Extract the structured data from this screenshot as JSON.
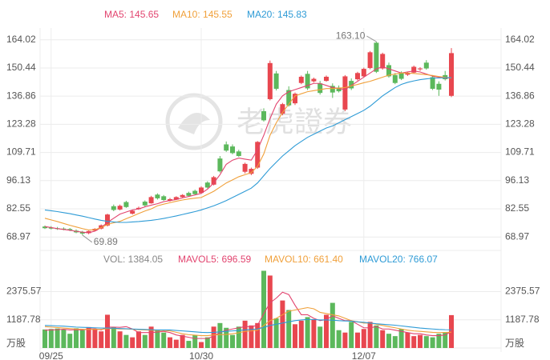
{
  "chart_data": [
    {
      "type": "candlestick",
      "up_color": "#e8474f",
      "down_color": "#5cb85c",
      "open": [
        74,
        73.5,
        73.2,
        73.0,
        72.8,
        72.0,
        71.4,
        70.8,
        72.0,
        73.0,
        74.5,
        83.8,
        82.2,
        85.8,
        80.2,
        82.4,
        86.0,
        85.2,
        89.4,
        88.6,
        86.4,
        87.0,
        88.2,
        90.2,
        91.2,
        90.2,
        95.2,
        94.2,
        106.8,
        113.6,
        112.6,
        110.2,
        100.4,
        99.4,
        102.4,
        129.6,
        135.4,
        147.8,
        128.4,
        139.8,
        133.4,
        143.2,
        147.6,
        144.0,
        143.0,
        144.2,
        141.8,
        141.0,
        130.4,
        144.2,
        145.0,
        146.4,
        150.4,
        162.6,
        150.2,
        151.8,
        147.0,
        148.0,
        147.2,
        148.2,
        149.8,
        153.0,
        146.0,
        142.8,
        147.0,
        137.0
      ],
      "high": [
        74.5,
        74.2,
        73.8,
        73.6,
        73.3,
        72.6,
        71.9,
        72.0,
        73.2,
        75.0,
        80.2,
        84.6,
        84.6,
        86.4,
        82.2,
        83.6,
        86.6,
        88.8,
        90.0,
        89.2,
        87.8,
        88.6,
        89.6,
        90.8,
        91.8,
        93.4,
        95.8,
        98.4,
        108.0,
        115.0,
        113.6,
        111.0,
        104.8,
        102.4,
        115.2,
        131.0,
        154.0,
        149.0,
        133.6,
        141.6,
        138.6,
        146.8,
        149.0,
        145.8,
        144.2,
        146.8,
        143.0,
        142.0,
        147.0,
        145.4,
        148.6,
        150.6,
        158.6,
        163.1,
        157.8,
        153.0,
        148.0,
        148.8,
        148.6,
        151.6,
        150.8,
        154.2,
        147.0,
        144.0,
        149.0,
        160.0
      ],
      "low": [
        72.8,
        72.6,
        72.4,
        72.2,
        71.8,
        70.8,
        69.89,
        70.3,
        71.6,
        72.6,
        74.0,
        81.4,
        81.8,
        83.0,
        79.8,
        82.0,
        83.6,
        85.0,
        87.0,
        86.4,
        86.0,
        86.8,
        88.0,
        88.4,
        89.2,
        89.8,
        92.4,
        93.8,
        100.0,
        110.0,
        108.8,
        107.6,
        99.6,
        98.8,
        101.8,
        124.6,
        134.8,
        139.6,
        127.6,
        131.8,
        132.6,
        142.6,
        139.8,
        143.4,
        137.6,
        143.8,
        136.0,
        138.6,
        129.6,
        139.8,
        144.4,
        145.8,
        149.8,
        148.0,
        149.6,
        145.8,
        142.6,
        144.6,
        146.6,
        147.8,
        149.0,
        149.6,
        139.8,
        137.0,
        144.4,
        136.4
      ],
      "close": [
        73.2,
        73.0,
        72.8,
        72.5,
        72.2,
        71.2,
        70.6,
        71.8,
        72.9,
        74.6,
        79.8,
        82.0,
        84.0,
        83.4,
        81.6,
        83.0,
        84.2,
        88.2,
        87.6,
        86.8,
        87.2,
        88.2,
        89.2,
        88.8,
        89.6,
        92.8,
        92.8,
        97.8,
        100.6,
        110.6,
        109.4,
        108.0,
        104.2,
        101.8,
        114.8,
        125.2,
        152.8,
        140.4,
        133.0,
        132.4,
        138.0,
        146.2,
        140.6,
        145.2,
        138.4,
        146.2,
        138.6,
        139.2,
        146.4,
        140.6,
        148.0,
        150.0,
        158.0,
        148.6,
        157.2,
        146.4,
        143.2,
        145.2,
        148.0,
        151.0,
        150.2,
        150.2,
        140.4,
        140.0,
        145.0,
        157.6
      ],
      "series": [
        {
          "name": "MA5",
          "label": "MA5: 145.65",
          "color": "#e2446f",
          "values": [
            74,
            73.5,
            73,
            72.6,
            72.2,
            71.7,
            71.3,
            71,
            71.8,
            73.5,
            76,
            78,
            80,
            81,
            82,
            82.5,
            83.5,
            84.3,
            85,
            86,
            86.5,
            87,
            87.8,
            88.5,
            89.2,
            90,
            92,
            95,
            99,
            104,
            106,
            107,
            106.5,
            106,
            111,
            118,
            126,
            133,
            137,
            139,
            140,
            141,
            142,
            143,
            143,
            142,
            141,
            140.5,
            140,
            142,
            144,
            146,
            148,
            150,
            151,
            150,
            149,
            148,
            148.5,
            149,
            148.5,
            147.5,
            146.5,
            146,
            145.5,
            145.65
          ]
        },
        {
          "name": "MA10",
          "label": "MA10: 145.55",
          "color": "#f0a03a",
          "values": [
            78,
            77.2,
            76.4,
            75.5,
            74.6,
            73.8,
            73,
            72.3,
            72.5,
            73.5,
            75,
            75.8,
            76.5,
            77.8,
            79,
            80.3,
            81.5,
            82.5,
            84,
            84.8,
            85.5,
            86.2,
            86.8,
            87.3,
            87.7,
            88,
            89.5,
            91,
            93,
            95,
            96.5,
            98,
            99,
            100,
            103,
            109,
            118,
            124,
            129,
            133,
            137,
            138,
            139,
            139.5,
            140,
            140.5,
            140.5,
            140.7,
            141,
            141.8,
            142.5,
            143.3,
            144,
            145,
            146,
            147,
            147.5,
            148,
            148,
            147.8,
            147.5,
            147.2,
            146.8,
            146.3,
            145.9,
            145.55
          ]
        },
        {
          "name": "MA20",
          "label": "MA20: 145.83",
          "color": "#2e9bd6",
          "values": [
            82,
            81.6,
            81.2,
            80.7,
            80.2,
            79.6,
            79,
            78.3,
            77.6,
            77,
            76.5,
            76.2,
            76,
            76,
            76.2,
            76.4,
            76.7,
            77,
            77.4,
            77.9,
            78.5,
            79.1,
            79.8,
            80.5,
            81.2,
            82,
            83,
            84,
            85.2,
            86.5,
            88,
            89.5,
            91,
            92.5,
            95,
            98.5,
            102,
            105,
            108,
            110.5,
            113,
            115,
            117,
            118.5,
            120,
            121.5,
            122.5,
            124,
            125.5,
            127,
            128.5,
            130,
            132,
            134.5,
            137,
            139,
            141,
            142.5,
            143.5,
            144.2,
            144.8,
            145.2,
            145.5,
            145.6,
            145.7,
            145.83
          ]
        }
      ],
      "ylim": [
        62.5,
        169.7
      ],
      "yticks": [
        68.97,
        82.55,
        96.13,
        109.71,
        123.28,
        136.86,
        150.44,
        164.02
      ],
      "max_label": "163.10",
      "min_label": "69.89",
      "watermark": "老虎證券",
      "grid": true
    },
    {
      "type": "bar",
      "label": "VOL: 1384.05",
      "categories": [
        null,
        "09/25",
        null,
        null,
        null,
        null,
        null,
        null,
        null,
        null,
        null,
        null,
        null,
        null,
        null,
        null,
        null,
        null,
        null,
        null,
        null,
        null,
        null,
        null,
        null,
        "10/30",
        null,
        null,
        null,
        null,
        null,
        null,
        null,
        null,
        null,
        null,
        null,
        null,
        null,
        null,
        null,
        null,
        null,
        null,
        null,
        null,
        null,
        null,
        null,
        null,
        null,
        "12/07",
        null,
        null,
        null,
        null,
        null,
        null,
        null,
        null,
        null,
        null,
        null,
        null,
        null,
        null
      ],
      "values": [
        780,
        800,
        820,
        780,
        600,
        830,
        750,
        880,
        800,
        700,
        1400,
        880,
        700,
        550,
        450,
        700,
        550,
        900,
        750,
        650,
        450,
        350,
        550,
        300,
        550,
        250,
        450,
        900,
        1050,
        850,
        550,
        900,
        1150,
        950,
        1050,
        3250,
        3050,
        1250,
        2000,
        1600,
        1000,
        1150,
        1300,
        1200,
        900,
        1400,
        1900,
        750,
        650,
        1100,
        650,
        800,
        1100,
        950,
        750,
        600,
        500,
        800,
        650,
        500,
        550,
        500,
        450,
        600,
        650,
        1384.05
      ],
      "series": [
        {
          "name": "MAVOL5",
          "label": "MAVOL5: 696.59",
          "color": "#e2446f",
          "values": [
            750,
            760,
            770,
            790,
            760,
            770,
            760,
            800,
            810,
            760,
            880,
            880,
            870,
            900,
            800,
            650,
            650,
            650,
            670,
            700,
            650,
            550,
            500,
            450,
            400,
            400,
            400,
            500,
            650,
            750,
            800,
            850,
            900,
            900,
            950,
            1450,
            1900,
            2100,
            2350,
            2250,
            1800,
            1400,
            1400,
            1250,
            1150,
            1200,
            1350,
            1250,
            1150,
            1150,
            1000,
            850,
            850,
            900,
            800,
            800,
            750,
            700,
            650,
            600,
            600,
            550,
            520,
            520,
            550,
            696.59
          ]
        },
        {
          "name": "MAVOL10",
          "label": "MAVOL10: 661.40",
          "color": "#f0a03a",
          "values": [
            900,
            880,
            860,
            840,
            820,
            800,
            790,
            780,
            790,
            780,
            820,
            820,
            800,
            800,
            790,
            770,
            760,
            750,
            740,
            740,
            720,
            660,
            600,
            560,
            540,
            520,
            520,
            550,
            560,
            570,
            600,
            640,
            700,
            720,
            750,
            950,
            1150,
            1250,
            1400,
            1550,
            1600,
            1650,
            1700,
            1650,
            1500,
            1450,
            1400,
            1350,
            1250,
            1150,
            1100,
            1050,
            1050,
            1000,
            950,
            900,
            850,
            800,
            750,
            720,
            700,
            680,
            660,
            650,
            655,
            661.4
          ]
        },
        {
          "name": "MAVOL20",
          "label": "MAVOL20: 766.07",
          "color": "#2e9bd6",
          "values": [
            950,
            940,
            930,
            920,
            900,
            880,
            870,
            860,
            850,
            840,
            840,
            830,
            820,
            810,
            800,
            790,
            780,
            770,
            760,
            760,
            760,
            740,
            720,
            700,
            680,
            660,
            650,
            660,
            680,
            700,
            720,
            740,
            760,
            780,
            800,
            870,
            950,
            1000,
            1050,
            1100,
            1150,
            1180,
            1200,
            1200,
            1180,
            1180,
            1170,
            1150,
            1140,
            1130,
            1100,
            1080,
            1050,
            1020,
            1000,
            980,
            960,
            930,
            900,
            870,
            840,
            820,
            800,
            780,
            770,
            766.07
          ]
        }
      ],
      "ylim": [
        0,
        3300
      ],
      "yticks": [
        1187.78,
        2375.57
      ],
      "unit_label": "万股",
      "grid": true
    }
  ]
}
